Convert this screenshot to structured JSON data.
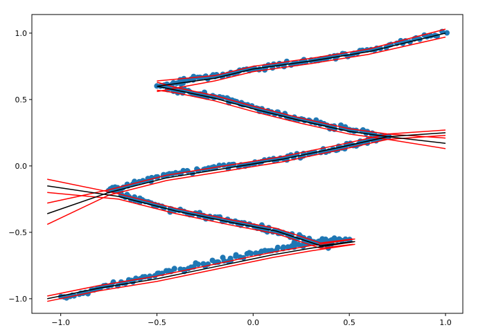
{
  "chart_data": {
    "type": "scatter",
    "title": "",
    "xlabel": "",
    "ylabel": "",
    "xlim": [
      -1.15,
      1.09
    ],
    "ylim": [
      -1.11,
      1.14
    ],
    "grid": false,
    "legend": "none",
    "x_ticks": [
      {
        "value": -1.0,
        "label": "−1.0"
      },
      {
        "value": -0.5,
        "label": "−0.5"
      },
      {
        "value": 0.0,
        "label": "0.0"
      },
      {
        "value": 0.5,
        "label": "0.5"
      },
      {
        "value": 1.0,
        "label": "1.0"
      }
    ],
    "y_ticks": [
      {
        "value": -1.0,
        "label": "−1.0"
      },
      {
        "value": -0.5,
        "label": "−0.5"
      },
      {
        "value": 0.0,
        "label": "0.0"
      },
      {
        "value": 0.5,
        "label": "0.5"
      },
      {
        "value": 1.0,
        "label": "1.0"
      }
    ],
    "colors": {
      "points": "#1f77b4",
      "fit": "#000000",
      "band": "#ff0000",
      "axes": "#000000"
    },
    "segments": [
      {
        "name": "",
        "x": [
          -1.0,
          -0.6,
          -0.2,
          0.2,
          0.5
        ],
        "y": [
          -1.0,
          -0.85,
          -0.72,
          -0.6,
          -0.55
        ]
      },
      {
        "name": "",
        "x": [
          0.4,
          0.15,
          -0.1,
          -0.45,
          -0.75
        ],
        "y": [
          -0.6,
          -0.5,
          -0.42,
          -0.32,
          -0.18
        ]
      },
      {
        "name": "",
        "x": [
          -0.75,
          -0.4,
          0.0,
          0.4,
          0.7
        ],
        "y": [
          -0.18,
          -0.05,
          0.02,
          0.12,
          0.22
        ]
      },
      {
        "name": "",
        "x": [
          0.7,
          0.4,
          0.1,
          -0.2,
          -0.45
        ],
        "y": [
          0.22,
          0.3,
          0.4,
          0.52,
          0.58
        ]
      },
      {
        "name": "",
        "x": [
          -0.5,
          -0.2,
          0.1,
          0.5,
          1.0
        ],
        "y": [
          0.6,
          0.68,
          0.75,
          0.84,
          1.0
        ]
      }
    ],
    "fit_lines": [
      {
        "name": "",
        "x": [
          -1.07,
          -0.8,
          -0.5,
          -0.2,
          0.1,
          0.3,
          0.53
        ],
        "y": [
          -1.0,
          -0.92,
          -0.85,
          -0.76,
          -0.67,
          -0.62,
          -0.57
        ]
      },
      {
        "name": "",
        "x": [
          0.52,
          0.35,
          0.12,
          -0.1,
          -0.4,
          -0.7,
          -1.07
        ],
        "y": [
          -0.57,
          -0.6,
          -0.49,
          -0.43,
          -0.34,
          -0.23,
          -0.15
        ]
      },
      {
        "name": "",
        "x": [
          -1.07,
          -0.75,
          -0.45,
          -0.15,
          0.15,
          0.45,
          0.7,
          1.0
        ],
        "y": [
          -0.36,
          -0.2,
          -0.09,
          -0.02,
          0.05,
          0.14,
          0.22,
          0.25
        ]
      },
      {
        "name": "",
        "x": [
          1.0,
          0.7,
          0.5,
          0.25,
          0.0,
          -0.2,
          -0.4,
          -0.5
        ],
        "y": [
          0.17,
          0.22,
          0.26,
          0.34,
          0.43,
          0.51,
          0.57,
          0.6
        ]
      },
      {
        "name": "",
        "x": [
          -0.5,
          -0.2,
          0.0,
          0.3,
          0.6,
          1.0
        ],
        "y": [
          0.6,
          0.66,
          0.73,
          0.79,
          0.86,
          1.0
        ]
      }
    ],
    "band_lines": [
      {
        "name": "",
        "x": [
          -1.07,
          -0.8,
          -0.5,
          -0.2,
          0.1,
          0.3,
          0.53
        ],
        "y": [
          -0.98,
          -0.9,
          -0.83,
          -0.74,
          -0.65,
          -0.6,
          -0.55
        ]
      },
      {
        "name": "",
        "x": [
          -1.07,
          -0.8,
          -0.5,
          -0.2,
          0.1,
          0.3,
          0.53
        ],
        "y": [
          -1.02,
          -0.94,
          -0.87,
          -0.78,
          -0.69,
          -0.64,
          -0.59
        ]
      },
      {
        "name": "",
        "x": [
          0.52,
          0.35,
          0.12,
          -0.1,
          -0.4,
          -0.7,
          -1.07
        ],
        "y": [
          -0.55,
          -0.58,
          -0.47,
          -0.41,
          -0.32,
          -0.21,
          -0.1
        ]
      },
      {
        "name": "",
        "x": [
          0.52,
          0.35,
          0.12,
          -0.1,
          -0.4,
          -0.7,
          -1.07
        ],
        "y": [
          -0.59,
          -0.62,
          -0.51,
          -0.45,
          -0.36,
          -0.25,
          -0.2
        ]
      },
      {
        "name": "",
        "x": [
          -1.07,
          -0.75,
          -0.45,
          -0.15,
          0.15,
          0.45,
          0.7,
          1.0
        ],
        "y": [
          -0.28,
          -0.18,
          -0.07,
          0.0,
          0.07,
          0.16,
          0.24,
          0.27
        ]
      },
      {
        "name": "",
        "x": [
          -1.07,
          -0.75,
          -0.45,
          -0.15,
          0.15,
          0.45,
          0.7,
          1.0
        ],
        "y": [
          -0.44,
          -0.22,
          -0.11,
          -0.04,
          0.03,
          0.12,
          0.2,
          0.23
        ]
      },
      {
        "name": "",
        "x": [
          1.0,
          0.7,
          0.5,
          0.25,
          0.0,
          -0.2,
          -0.4,
          -0.5
        ],
        "y": [
          0.21,
          0.24,
          0.28,
          0.36,
          0.45,
          0.53,
          0.59,
          0.63
        ]
      },
      {
        "name": "",
        "x": [
          1.0,
          0.7,
          0.5,
          0.25,
          0.0,
          -0.2,
          -0.4,
          -0.5
        ],
        "y": [
          0.13,
          0.2,
          0.24,
          0.32,
          0.41,
          0.49,
          0.55,
          0.57
        ]
      },
      {
        "name": "",
        "x": [
          -0.5,
          -0.2,
          0.0,
          0.3,
          0.6,
          1.0
        ],
        "y": [
          0.64,
          0.68,
          0.75,
          0.81,
          0.88,
          1.03
        ]
      },
      {
        "name": "",
        "x": [
          -0.5,
          -0.2,
          0.0,
          0.3,
          0.6,
          1.0
        ],
        "y": [
          0.56,
          0.64,
          0.71,
          0.77,
          0.84,
          0.97
        ]
      }
    ]
  }
}
